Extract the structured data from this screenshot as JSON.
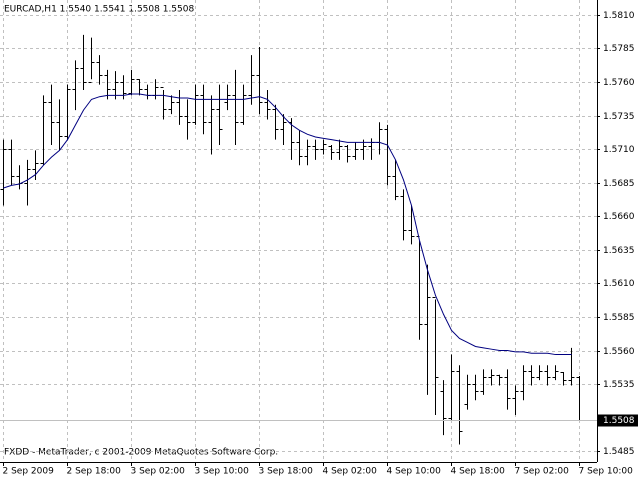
{
  "chart_data": {
    "type": "ohlc",
    "title": "EURCAD,H1  1.5540 1.5541 1.5508 1.5508",
    "footer": "FXDD - MetaTrader, c 2001-2009 MetaQuotes Software Corp.",
    "categories": [
      "2 Sep 2009",
      null,
      null,
      null,
      null,
      null,
      null,
      null,
      "2 Sep 18:00",
      null,
      null,
      null,
      null,
      null,
      null,
      null,
      "3 Sep 02:00",
      null,
      null,
      null,
      null,
      null,
      null,
      null,
      "3 Sep 10:00",
      null,
      null,
      null,
      null,
      null,
      null,
      null,
      "3 Sep 18:00",
      null,
      null,
      null,
      null,
      null,
      null,
      null,
      "4 Sep 02:00",
      null,
      null,
      null,
      null,
      null,
      null,
      null,
      "4 Sep 10:00",
      null,
      null,
      null,
      null,
      null,
      null,
      null,
      "4 Sep 18:00",
      null,
      null,
      null,
      null,
      null,
      null,
      null,
      "7 Sep 02:00",
      null,
      null,
      null,
      null,
      null,
      null,
      null,
      "7 Sep 10:00"
    ],
    "ohlc": {
      "color": "#000000",
      "open": [
        1.568,
        1.571,
        1.569,
        1.5685,
        1.5695,
        1.57,
        1.5745,
        1.573,
        1.572,
        1.5755,
        1.577,
        1.576,
        1.5775,
        1.5765,
        1.5755,
        1.576,
        1.5752,
        1.5762,
        1.5755,
        1.575,
        1.5756,
        1.574,
        1.5745,
        1.5735,
        1.573,
        1.575,
        1.573,
        1.574,
        1.5745,
        1.575,
        1.573,
        1.575,
        1.5765,
        1.5745,
        1.574,
        1.5725,
        1.573,
        1.5715,
        1.5705,
        1.5712,
        1.571,
        1.5712,
        1.5708,
        1.5712,
        1.5705,
        1.571,
        1.5712,
        1.5715,
        1.5725,
        1.569,
        1.5675,
        1.565,
        1.5645,
        1.558,
        1.56,
        1.553,
        1.551,
        1.5545,
        1.552,
        1.5535,
        1.553,
        1.554,
        1.5542,
        1.554,
        1.5525,
        1.553,
        1.5545,
        1.554,
        1.5545,
        1.554,
        1.5544,
        1.5538,
        1.554
      ],
      "high": [
        1.5717,
        1.5717,
        1.5698,
        1.5702,
        1.5709,
        1.575,
        1.5758,
        1.5747,
        1.5758,
        1.5776,
        1.5795,
        1.5793,
        1.578,
        1.5769,
        1.5768,
        1.5765,
        1.5769,
        1.5762,
        1.5758,
        1.5762,
        1.5754,
        1.575,
        1.5754,
        1.5747,
        1.5758,
        1.5758,
        1.575,
        1.5758,
        1.5758,
        1.5769,
        1.5758,
        1.578,
        1.5786,
        1.5754,
        1.5743,
        1.5736,
        1.5733,
        1.5724,
        1.5717,
        1.5717,
        1.5717,
        1.5713,
        1.5717,
        1.5713,
        1.5715,
        1.5717,
        1.5718,
        1.573,
        1.5728,
        1.5702,
        1.568,
        1.5668,
        1.5642,
        1.5624,
        1.5598,
        1.5538,
        1.5557,
        1.5549,
        1.5542,
        1.5542,
        1.5546,
        1.5546,
        1.5542,
        1.5546,
        1.5534,
        1.5549,
        1.5549,
        1.5549,
        1.5549,
        1.5549,
        1.5544,
        1.5562,
        1.5541
      ],
      "low": [
        1.5668,
        1.5683,
        1.568,
        1.5668,
        1.5687,
        1.5698,
        1.5713,
        1.5709,
        1.5717,
        1.5739,
        1.5754,
        1.5762,
        1.5758,
        1.5747,
        1.5747,
        1.5747,
        1.575,
        1.575,
        1.5747,
        1.5747,
        1.5732,
        1.5736,
        1.5728,
        1.5717,
        1.5728,
        1.5721,
        1.5706,
        1.5713,
        1.5739,
        1.5713,
        1.5728,
        1.5743,
        1.5736,
        1.5732,
        1.5717,
        1.5713,
        1.5702,
        1.5698,
        1.5698,
        1.5702,
        1.5706,
        1.5702,
        1.5702,
        1.57,
        1.5702,
        1.5702,
        1.5702,
        1.5706,
        1.5683,
        1.5672,
        1.5642,
        1.5639,
        1.5568,
        1.5527,
        1.5512,
        1.5497,
        1.5508,
        1.549,
        1.5516,
        1.5523,
        1.5527,
        1.5534,
        1.5534,
        1.5516,
        1.5512,
        1.5523,
        1.5534,
        1.5538,
        1.5534,
        1.5538,
        1.5534,
        1.5534,
        1.5508
      ],
      "close": [
        1.571,
        1.569,
        1.5685,
        1.5695,
        1.57,
        1.5745,
        1.573,
        1.572,
        1.5755,
        1.577,
        1.576,
        1.5775,
        1.5765,
        1.5755,
        1.576,
        1.5752,
        1.5762,
        1.5755,
        1.575,
        1.5756,
        1.574,
        1.5745,
        1.5735,
        1.573,
        1.575,
        1.573,
        1.574,
        1.5725,
        1.575,
        1.573,
        1.575,
        1.5765,
        1.5745,
        1.574,
        1.5725,
        1.573,
        1.5715,
        1.5705,
        1.5712,
        1.571,
        1.5714,
        1.5708,
        1.5712,
        1.5705,
        1.571,
        1.5712,
        1.5715,
        1.5725,
        1.569,
        1.5675,
        1.565,
        1.5645,
        1.558,
        1.56,
        1.554,
        1.551,
        1.5545,
        1.55,
        1.5535,
        1.553,
        1.554,
        1.5542,
        1.554,
        1.5525,
        1.553,
        1.5545,
        1.554,
        1.5545,
        1.554,
        1.5545,
        1.5538,
        1.554,
        1.5508
      ]
    },
    "series": [
      {
        "color": "#000080",
        "values": [
          1.5681,
          1.5683,
          1.5684,
          1.5687,
          1.5691,
          1.5698,
          1.5704,
          1.5709,
          1.5717,
          1.5728,
          1.5739,
          1.5747,
          1.5749,
          1.575,
          1.575,
          1.575,
          1.5751,
          1.5751,
          1.575,
          1.575,
          1.575,
          1.5749,
          1.5748,
          1.5748,
          1.5747,
          1.5747,
          1.5747,
          1.5747,
          1.5747,
          1.5747,
          1.5747,
          1.5748,
          1.5749,
          1.5747,
          1.5741,
          1.5734,
          1.5728,
          1.5724,
          1.5721,
          1.5719,
          1.5718,
          1.5717,
          1.5716,
          1.5715,
          1.5715,
          1.5715,
          1.5715,
          1.5715,
          1.5713,
          1.5702,
          1.5687,
          1.5668,
          1.5642,
          1.562,
          1.5601,
          1.5587,
          1.5575,
          1.5569,
          1.5566,
          1.5563,
          1.5562,
          1.5561,
          1.556,
          1.556,
          1.5559,
          1.5559,
          1.5558,
          1.5558,
          1.5558,
          1.5557,
          1.5557,
          1.5557,
          null
        ]
      }
    ],
    "ylim": [
      1.5477,
      1.5821
    ],
    "yticks": [
      {
        "value": 1.581,
        "label": "1.5810"
      },
      {
        "value": 1.5785,
        "label": "1.5785"
      },
      {
        "value": 1.576,
        "label": "1.5760"
      },
      {
        "value": 1.5735,
        "label": "1.5735"
      },
      {
        "value": 1.571,
        "label": "1.5710"
      },
      {
        "value": 1.5685,
        "label": "1.5685"
      },
      {
        "value": 1.566,
        "label": "1.5660"
      },
      {
        "value": 1.5635,
        "label": "1.5635"
      },
      {
        "value": 1.561,
        "label": "1.5610"
      },
      {
        "value": 1.5585,
        "label": "1.5585"
      },
      {
        "value": 1.556,
        "label": "1.5560"
      },
      {
        "value": 1.5535,
        "label": "1.5535"
      },
      {
        "value": 1.5485,
        "label": "1.5485"
      }
    ],
    "last_price": {
      "value": 1.5508,
      "label": "1.5508"
    },
    "grid": true
  }
}
